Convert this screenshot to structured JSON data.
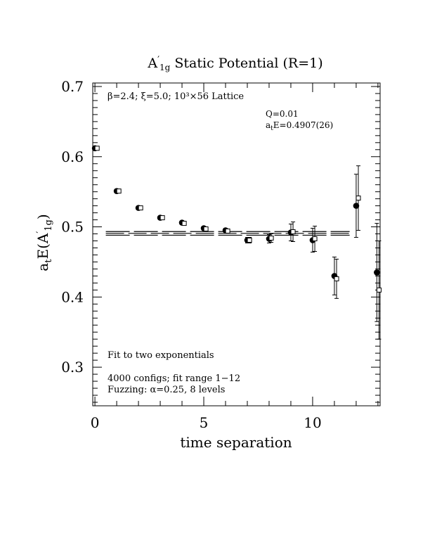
{
  "chart_data": {
    "type": "scatter",
    "title_main": "A",
    "title_prime": "′",
    "title_sub": "1g",
    "title_rest": " Static Potential (R=1)",
    "xlabel": "time separation",
    "ylabel_main": "a",
    "ylabel_sub_t": "t",
    "ylabel_mid": "E(A",
    "ylabel_prime": "′",
    "ylabel_sub": "1g",
    "ylabel_end": ")",
    "xlim": [
      -0.1,
      13.1
    ],
    "ylim": [
      0.245,
      0.705
    ],
    "x_ticks": [
      0,
      5,
      10
    ],
    "y_ticks": [
      0.3,
      0.4,
      0.5,
      0.6,
      0.7
    ],
    "x_tick_labels": [
      "0",
      "5",
      "10"
    ],
    "y_tick_labels": [
      "0.3",
      "0.4",
      "0.5",
      "0.6",
      "0.7"
    ],
    "annotations": {
      "lattice": "β=2.4; ξ=5.0; 10³×56 Lattice",
      "q": "Q=0.01",
      "energy_a": "a",
      "energy_t": "t",
      "energy_rest": "E=0.4907(26)",
      "fit": "Fit to two exponentials",
      "configs": "4000 configs; fit range 1−12",
      "fuzzing": "Fuzzing: α=0.25, 8 levels"
    },
    "fit_band": {
      "x_start": 0.5,
      "x_end": 11.7,
      "center": 0.4907,
      "lower": 0.4881,
      "upper": 0.4933
    },
    "series": [
      {
        "marker": "filled-circle",
        "points": [
          {
            "x": 0,
            "y": 0.612,
            "err": 0.002
          },
          {
            "x": 1,
            "y": 0.551,
            "err": 0.002
          },
          {
            "x": 2,
            "y": 0.527,
            "err": 0.002
          },
          {
            "x": 3,
            "y": 0.513,
            "err": 0.002
          },
          {
            "x": 4,
            "y": 0.506,
            "err": 0.002
          },
          {
            "x": 5,
            "y": 0.498,
            "err": 0.002
          },
          {
            "x": 6,
            "y": 0.495,
            "err": 0.003
          },
          {
            "x": 7,
            "y": 0.481,
            "err": 0.004
          },
          {
            "x": 8,
            "y": 0.483,
            "err": 0.006
          },
          {
            "x": 9,
            "y": 0.492,
            "err": 0.012
          },
          {
            "x": 10,
            "y": 0.481,
            "err": 0.017
          },
          {
            "x": 11,
            "y": 0.43,
            "err": 0.027
          },
          {
            "x": 12,
            "y": 0.53,
            "err": 0.045
          },
          {
            "x": 12.95,
            "y": 0.435,
            "err": 0.07
          }
        ]
      },
      {
        "marker": "open-square",
        "points": [
          {
            "x": 0.1,
            "y": 0.612,
            "err": 0.002
          },
          {
            "x": 1.1,
            "y": 0.551,
            "err": 0.002
          },
          {
            "x": 2.1,
            "y": 0.527,
            "err": 0.002
          },
          {
            "x": 3.1,
            "y": 0.513,
            "err": 0.002
          },
          {
            "x": 4.1,
            "y": 0.505,
            "err": 0.002
          },
          {
            "x": 5.1,
            "y": 0.497,
            "err": 0.002
          },
          {
            "x": 6.1,
            "y": 0.494,
            "err": 0.002
          },
          {
            "x": 7.1,
            "y": 0.481,
            "err": 0.004
          },
          {
            "x": 8.1,
            "y": 0.484,
            "err": 0.006
          },
          {
            "x": 9.1,
            "y": 0.493,
            "err": 0.014
          },
          {
            "x": 10.1,
            "y": 0.483,
            "err": 0.018
          },
          {
            "x": 11.1,
            "y": 0.426,
            "err": 0.028
          },
          {
            "x": 12.1,
            "y": 0.541,
            "err": 0.046
          },
          {
            "x": 13.05,
            "y": 0.41,
            "err": 0.07
          }
        ]
      }
    ],
    "grid": false,
    "legend": "none"
  }
}
